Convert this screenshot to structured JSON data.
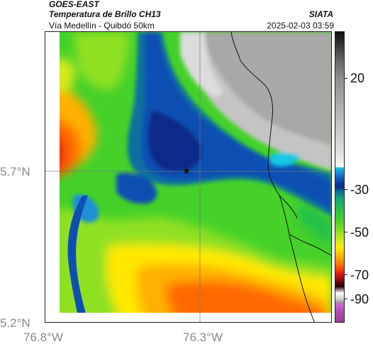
{
  "header": {
    "satellite": "GOES-EAST",
    "product": "Temperatura de Brillo CH13",
    "route": "Vía Medellín - Quibdó 50km",
    "organization": "SIATA",
    "timestamp": "2025-02-03 03:59"
  },
  "axes": {
    "lat_ticks": [
      "5.7°N",
      "5.2°N"
    ],
    "lon_ticks": [
      "76.8°W",
      "76.3°W"
    ]
  },
  "colorbar": {
    "ticks": [
      "20",
      "-30",
      "-50",
      "-70",
      "-90"
    ],
    "colors": {
      "very_cold": "#9a3f9a",
      "deep_convection": "#082a8a",
      "warm_land": "#ff6a00",
      "mid": "#45d12a",
      "clear": "#dcdcdc"
    }
  },
  "map": {
    "marker_icon": "star-icon"
  }
}
